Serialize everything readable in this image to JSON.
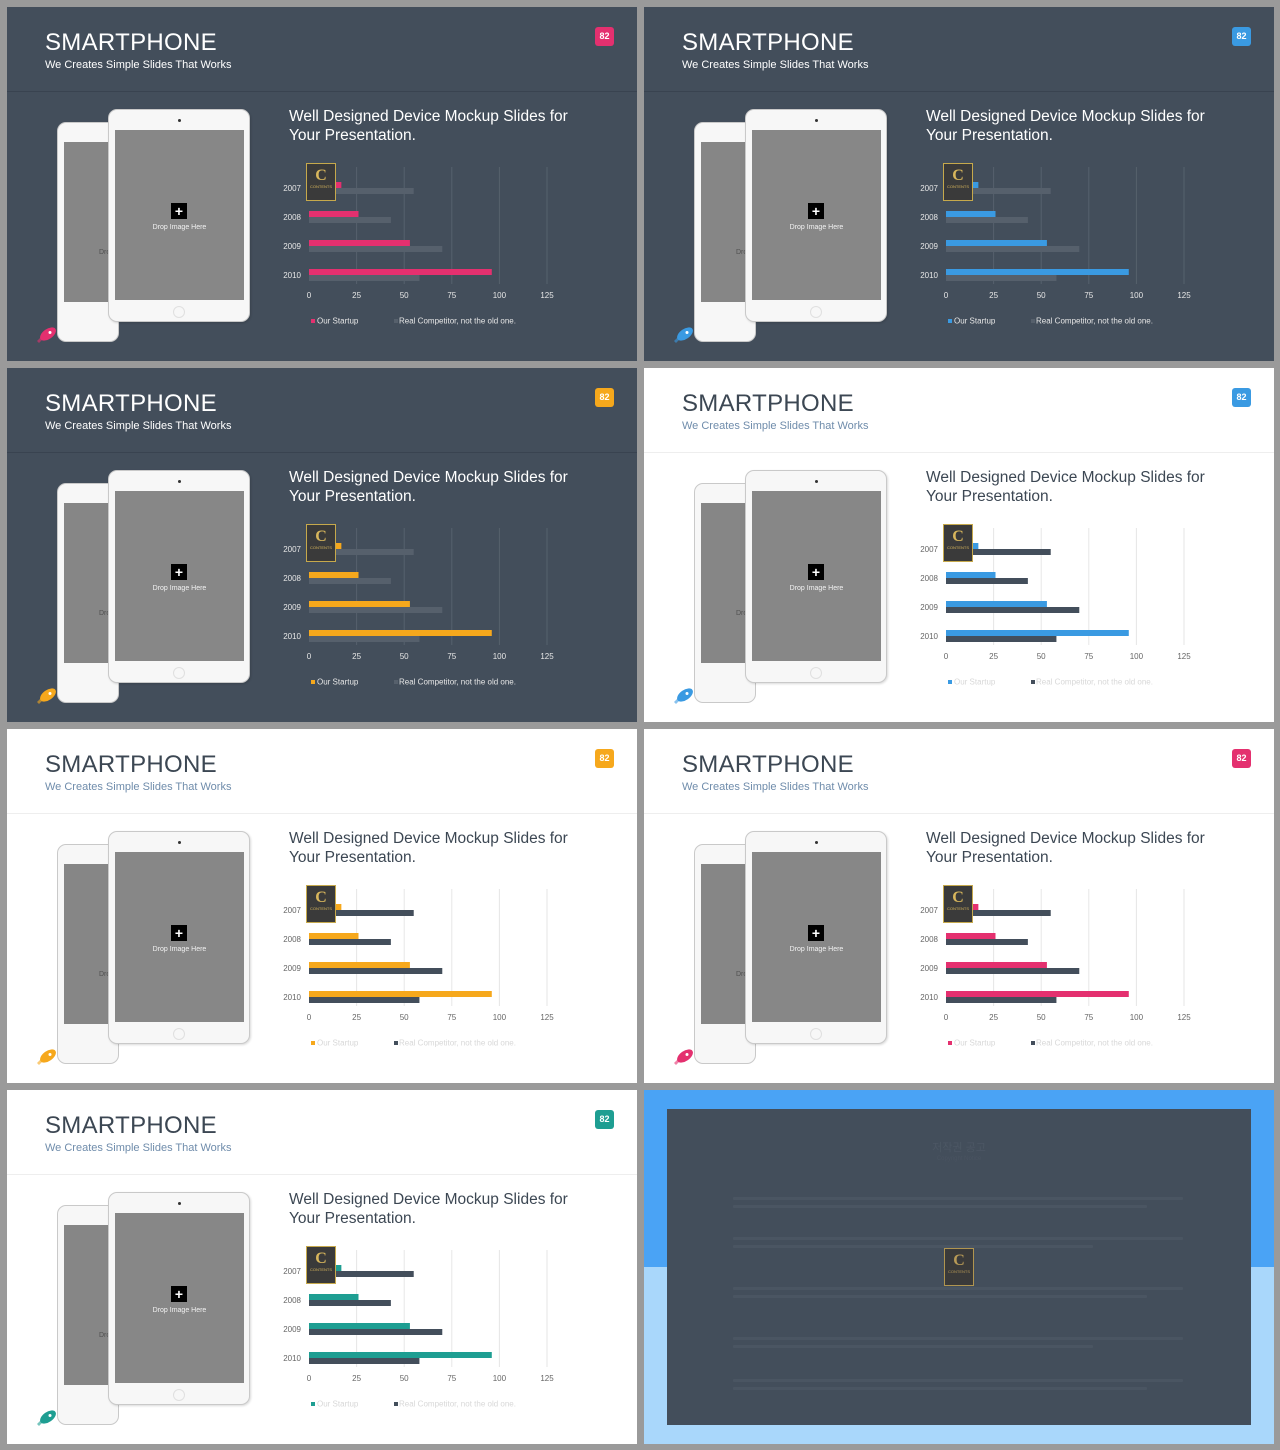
{
  "slide_common": {
    "title": "SMARTPHONE",
    "subtitle": "We Creates Simple Slides That Works",
    "badge": "82",
    "heading": "Well Designed Device Mockup Slides for Your Presentation.",
    "drop_label": "Drop Image Here",
    "drop_label_partial": "Dro",
    "plus": "+",
    "logo_letter": "C",
    "logo_text": "CONTENTS"
  },
  "slides": [
    {
      "theme": "dark",
      "accent": "#e4306f"
    },
    {
      "theme": "dark",
      "accent": "#3a9ae2"
    },
    {
      "theme": "dark",
      "accent": "#f6a81c"
    },
    {
      "theme": "light",
      "accent": "#3a9ae2"
    },
    {
      "theme": "light",
      "accent": "#f6a81c"
    },
    {
      "theme": "light",
      "accent": "#e4306f"
    },
    {
      "theme": "light",
      "accent": "#1e9e92"
    }
  ],
  "colors": {
    "competitor_dark_theme": "#56606c",
    "competitor_light_theme": "#434e5b"
  },
  "icons": [
    "rocket-icon",
    "plus-icon",
    "contents-logo"
  ],
  "chart_data": {
    "type": "bar",
    "orientation": "horizontal",
    "categories": [
      "2007",
      "2008",
      "2009",
      "2010"
    ],
    "series": [
      {
        "name": "Our Startup",
        "values": [
          17,
          26,
          53,
          96
        ]
      },
      {
        "name": "Real Competitor, not the old one.",
        "values": [
          55,
          43,
          70,
          58
        ]
      }
    ],
    "xticks": [
      "0",
      "25",
      "50",
      "75",
      "100",
      "125"
    ],
    "xlim": [
      0,
      125
    ],
    "grid": true,
    "legend": "bottom"
  },
  "copyright": {
    "title": "저작권 공고",
    "subtitle": "Copyright Notice"
  }
}
